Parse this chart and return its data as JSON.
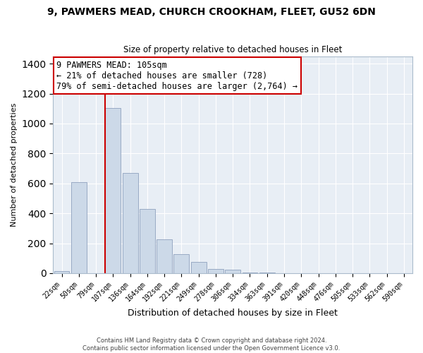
{
  "title": "9, PAWMERS MEAD, CHURCH CROOKHAM, FLEET, GU52 6DN",
  "subtitle": "Size of property relative to detached houses in Fleet",
  "xlabel": "Distribution of detached houses by size in Fleet",
  "ylabel": "Number of detached properties",
  "bin_labels": [
    "22sqm",
    "50sqm",
    "79sqm",
    "107sqm",
    "136sqm",
    "164sqm",
    "192sqm",
    "221sqm",
    "249sqm",
    "278sqm",
    "306sqm",
    "334sqm",
    "363sqm",
    "391sqm",
    "420sqm",
    "448sqm",
    "476sqm",
    "505sqm",
    "533sqm",
    "562sqm",
    "590sqm"
  ],
  "bar_heights": [
    15,
    610,
    0,
    1105,
    670,
    430,
    225,
    125,
    75,
    30,
    25,
    5,
    5,
    0,
    0,
    0,
    0,
    0,
    0,
    0,
    0
  ],
  "bar_color": "#ccd9e8",
  "bar_edge_color": "#99aac4",
  "vline_bar_index": 3,
  "vline_color": "#cc0000",
  "annotation_text": "9 PAWMERS MEAD: 105sqm\n← 21% of detached houses are smaller (728)\n79% of semi-detached houses are larger (2,764) →",
  "annotation_box_color": "#ffffff",
  "annotation_box_edge": "#cc0000",
  "ylim": [
    0,
    1450
  ],
  "yticks": [
    0,
    200,
    400,
    600,
    800,
    1000,
    1200,
    1400
  ],
  "footer_text": "Contains HM Land Registry data © Crown copyright and database right 2024.\nContains public sector information licensed under the Open Government Licence v3.0.",
  "bg_color": "#ffffff",
  "plot_bg_color": "#e8eef5",
  "grid_color": "#ffffff",
  "spine_color": "#aabbcc"
}
